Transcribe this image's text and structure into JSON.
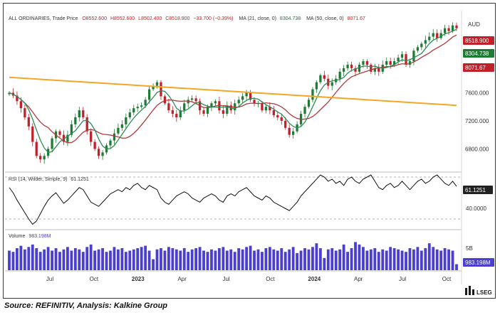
{
  "header": {
    "instrument": "ALL ORDINARIES, Trade Price",
    "open": "O8552.600",
    "high": "H8552.600",
    "low": "L8502.400",
    "close": "C8518.900",
    "change": "−33.700 (−0.39%)",
    "ma21": "MA (21, close, 0)",
    "ma21_val": "8304.738",
    "ma50": "MA (50, close, 0)",
    "ma50_val": "8071.67",
    "currency": "AUD"
  },
  "price_labels": {
    "last": "8518.900",
    "ma21": "8304.738",
    "ma50": "8071.67"
  },
  "colors": {
    "up": "#1e7b34",
    "down": "#c0202a",
    "ma21": "#2e8b57",
    "ma50": "#b03a3a",
    "trendline": "#f5a623",
    "rsi": "#111111",
    "volume": "#4a3fcf",
    "last_label": "#c0202a",
    "ma21_label": "#1e7b34",
    "ma50_label": "#c0202a"
  },
  "rsi_panel": {
    "label": "RSI (14, Wilder, Simple, 9)",
    "value_label": "61.1251",
    "tick": "40.0000"
  },
  "volume_panel": {
    "label": "Volume",
    "value_label": "983.198M",
    "tick": "5B",
    "last_label": "983.198M"
  },
  "footer": {
    "source": "Source: REFINITIV, Analysis: Kalkine Group",
    "logo": "LSEG"
  },
  "chart_data": {
    "type": "candlestick",
    "price_axis": {
      "ticks": [
        "6800.000",
        "7200.000",
        "7600.000"
      ],
      "ylim": [
        6500,
        8750
      ]
    },
    "x_ticks": [
      "Jul",
      "Oct",
      "2023",
      "Apr",
      "Jul",
      "Oct",
      "2024",
      "Apr",
      "Jul",
      "Oct"
    ],
    "x_tick_bold": [
      false,
      false,
      true,
      false,
      false,
      false,
      true,
      false,
      false,
      false
    ],
    "period": "2022-05 to 2024-11 (weekly)",
    "close_series": [
      7600,
      7560,
      7480,
      7380,
      7250,
      7120,
      6900,
      6700,
      6650,
      6700,
      6800,
      6950,
      7050,
      7000,
      6900,
      7000,
      7150,
      7250,
      7350,
      7250,
      7050,
      6900,
      6800,
      6700,
      6750,
      6850,
      6920,
      7020,
      7100,
      7150,
      7250,
      7320,
      7380,
      7400,
      7420,
      7500,
      7650,
      7700,
      7750,
      7550,
      7450,
      7350,
      7300,
      7250,
      7350,
      7450,
      7500,
      7520,
      7480,
      7350,
      7300,
      7400,
      7450,
      7480,
      7350,
      7300,
      7420,
      7350,
      7450,
      7500,
      7550,
      7600,
      7500,
      7450,
      7450,
      7350,
      7400,
      7350,
      7280,
      7250,
      7200,
      7100,
      7000,
      7050,
      7150,
      7300,
      7400,
      7500,
      7650,
      7750,
      7850,
      7800,
      7700,
      7750,
      7800,
      7900,
      7950,
      8000,
      7950,
      7900,
      8000,
      8050,
      8000,
      7900,
      7950,
      7900,
      8000,
      8050,
      8000,
      8050,
      8100,
      8150,
      8000,
      8050,
      8200,
      8250,
      8300,
      8350,
      8400,
      8450,
      8380,
      8450,
      8520,
      8480,
      8560,
      8519
    ],
    "ma21_end": 8304.738,
    "ma50_end": 8071.67,
    "trendline": {
      "from": 7820,
      "to": 7420
    },
    "rsi_series": [
      60,
      55,
      48,
      42,
      36,
      30,
      25,
      28,
      35,
      42,
      48,
      52,
      55,
      50,
      45,
      48,
      52,
      56,
      60,
      58,
      52,
      46,
      44,
      42,
      46,
      50,
      54,
      56,
      58,
      56,
      60,
      58,
      62,
      64,
      60,
      58,
      62,
      60,
      58,
      50,
      46,
      44,
      48,
      52,
      54,
      56,
      54,
      50,
      48,
      46,
      50,
      52,
      54,
      52,
      48,
      46,
      52,
      54,
      52,
      56,
      58,
      60,
      56,
      52,
      50,
      48,
      52,
      50,
      46,
      44,
      42,
      40,
      38,
      42,
      46,
      52,
      56,
      60,
      64,
      68,
      72,
      70,
      66,
      68,
      64,
      66,
      62,
      68,
      70,
      66,
      64,
      68,
      70,
      72,
      66,
      60,
      58,
      62,
      64,
      60,
      62,
      66,
      62,
      58,
      62,
      66,
      68,
      64,
      66,
      70,
      72,
      68,
      64,
      62,
      66,
      61.1251
    ],
    "volume_series": [
      3.2,
      3.0,
      3.6,
      4.0,
      3.4,
      3.8,
      4.2,
      3.6,
      3.0,
      3.4,
      3.8,
      3.2,
      3.6,
      3.0,
      3.4,
      3.8,
      3.2,
      3.6,
      3.4,
      3.0,
      3.8,
      4.2,
      3.2,
      3.4,
      3.6,
      3.0,
      3.2,
      3.8,
      3.4,
      3.6,
      3.0,
      3.2,
      3.4,
      3.6,
      3.8,
      4.0,
      3.2,
      1.8,
      3.4,
      3.6,
      3.2,
      3.8,
      3.6,
      3.4,
      3.2,
      3.6,
      3.0,
      3.4,
      3.6,
      3.8,
      3.2,
      3.0,
      3.4,
      3.2,
      3.6,
      3.8,
      3.2,
      3.4,
      3.0,
      3.6,
      3.4,
      3.8,
      4.0,
      3.2,
      3.4,
      3.0,
      3.6,
      3.8,
      3.4,
      3.2,
      3.6,
      3.0,
      3.4,
      3.8,
      2.8,
      3.2,
      3.6,
      3.4,
      3.8,
      4.4,
      3.6,
      2.0,
      3.4,
      3.6,
      3.2,
      3.4,
      4.2,
      3.0,
      3.6,
      4.6,
      4.2,
      3.8,
      3.2,
      3.4,
      3.6,
      3.0,
      3.4,
      3.2,
      3.8,
      3.6,
      3.4,
      3.2,
      3.0,
      3.6,
      3.4,
      3.8,
      3.2,
      3.6,
      4.4,
      3.8,
      3.4,
      3.2,
      3.6,
      3.4,
      3.2,
      0.983
    ]
  }
}
